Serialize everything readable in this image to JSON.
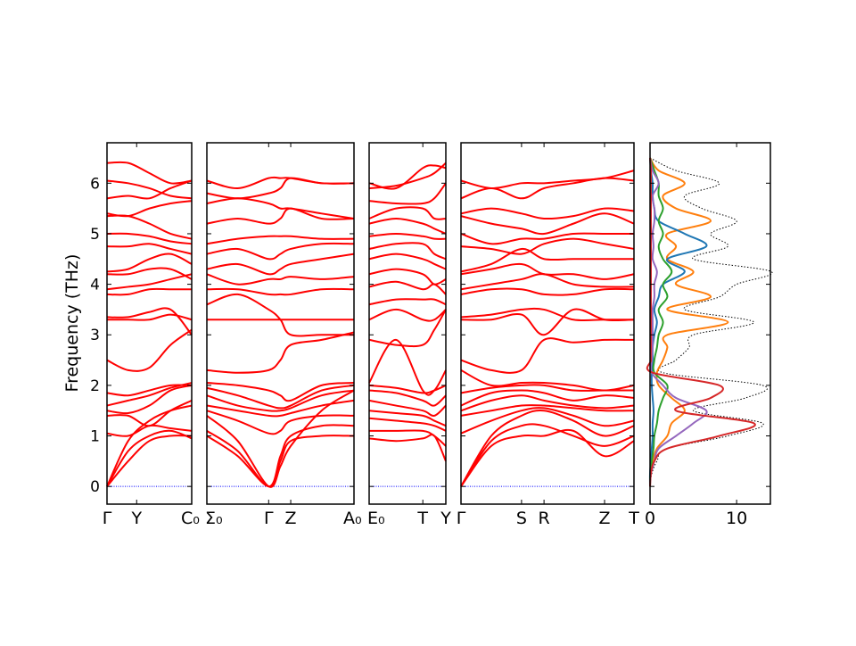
{
  "chart_data": {
    "type": "line",
    "title": "",
    "ylabel": "Frequency (THz)",
    "ylim": [
      -0.35,
      6.8
    ],
    "yticks": [
      "0",
      "1",
      "2",
      "3",
      "4",
      "5",
      "6"
    ],
    "band_color": "#ff0000",
    "zero_line_color": "#0000ff",
    "panels": [
      {
        "name": "Γ-Y-C0",
        "kpoints": [
          {
            "label": "Γ",
            "x": 0
          },
          {
            "label": "Y",
            "x": 0.35
          },
          {
            "label": "C₀",
            "x": 1
          }
        ],
        "x": [
          0,
          0.25,
          0.5,
          0.75,
          1
        ],
        "bands": [
          [
            0,
            0.5,
            0.9,
            1.0,
            1.0
          ],
          [
            0,
            0.7,
            1.0,
            1.1,
            0.95
          ],
          [
            0,
            0.9,
            1.3,
            1.5,
            1.6
          ],
          [
            1.05,
            1.0,
            1.2,
            1.15,
            1.1
          ],
          [
            1.4,
            1.4,
            1.2,
            1.5,
            1.7
          ],
          [
            1.5,
            1.45,
            1.6,
            1.9,
            2.0
          ],
          [
            1.6,
            1.7,
            1.8,
            1.95,
            2.05
          ],
          [
            1.85,
            1.8,
            1.9,
            2.0,
            2.0
          ],
          [
            2.5,
            2.3,
            2.35,
            2.8,
            3.1
          ],
          [
            3.3,
            3.3,
            3.3,
            3.4,
            3.3
          ],
          [
            3.35,
            3.35,
            3.45,
            3.5,
            3.0
          ],
          [
            3.8,
            3.8,
            3.9,
            3.9,
            3.9
          ],
          [
            3.9,
            3.95,
            4.0,
            4.1,
            4.2
          ],
          [
            4.2,
            4.2,
            4.3,
            4.3,
            4.1
          ],
          [
            4.25,
            4.3,
            4.5,
            4.6,
            4.4
          ],
          [
            4.75,
            4.75,
            4.8,
            4.7,
            4.6
          ],
          [
            5.0,
            5.0,
            4.95,
            4.85,
            4.8
          ],
          [
            5.35,
            5.35,
            5.2,
            5.0,
            4.9
          ],
          [
            5.4,
            5.35,
            5.5,
            5.6,
            5.65
          ],
          [
            5.7,
            5.75,
            5.7,
            5.9,
            6.05
          ],
          [
            6.05,
            6.0,
            5.9,
            5.75,
            5.7
          ],
          [
            6.4,
            6.4,
            6.2,
            6.0,
            6.05
          ]
        ]
      },
      {
        "name": "Σ0-Γ-Z-A0",
        "kpoints": [
          {
            "label": "Σ₀",
            "x": 0
          },
          {
            "label": "Γ",
            "x": 0.42
          },
          {
            "label": "Z",
            "x": 0.57
          },
          {
            "label": "A₀",
            "x": 1
          }
        ],
        "x": [
          0,
          0.21,
          0.42,
          0.5,
          0.57,
          0.78,
          1
        ],
        "bands": [
          [
            1.0,
            0.6,
            0,
            0.5,
            0.9,
            1.0,
            1.0
          ],
          [
            1.1,
            0.7,
            0,
            0.6,
            1.0,
            1.2,
            1.2
          ],
          [
            1.4,
            0.9,
            0,
            0.4,
            0.8,
            1.5,
            1.9
          ],
          [
            1.5,
            1.3,
            1.05,
            1.1,
            1.3,
            1.4,
            1.4
          ],
          [
            1.6,
            1.5,
            1.4,
            1.4,
            1.45,
            1.6,
            1.7
          ],
          [
            1.8,
            1.6,
            1.5,
            1.5,
            1.55,
            1.8,
            1.9
          ],
          [
            1.95,
            1.8,
            1.6,
            1.55,
            1.6,
            1.9,
            2.0
          ],
          [
            2.05,
            2.0,
            1.9,
            1.8,
            1.7,
            2.0,
            2.05
          ],
          [
            2.3,
            2.25,
            2.3,
            2.5,
            2.8,
            2.9,
            3.05
          ],
          [
            3.3,
            3.3,
            3.3,
            3.3,
            3.3,
            3.3,
            3.3
          ],
          [
            3.6,
            3.8,
            3.5,
            3.3,
            3.0,
            3.0,
            3.0
          ],
          [
            3.9,
            3.9,
            3.8,
            3.8,
            3.8,
            3.9,
            3.9
          ],
          [
            4.2,
            4.0,
            4.1,
            4.1,
            4.15,
            4.1,
            4.15
          ],
          [
            4.3,
            4.4,
            4.2,
            4.3,
            4.4,
            4.5,
            4.6
          ],
          [
            4.6,
            4.7,
            4.5,
            4.6,
            4.7,
            4.8,
            4.8
          ],
          [
            4.8,
            4.9,
            4.95,
            4.95,
            4.95,
            4.9,
            4.9
          ],
          [
            5.2,
            5.3,
            5.2,
            5.3,
            5.5,
            5.3,
            5.3
          ],
          [
            5.6,
            5.7,
            5.6,
            5.5,
            5.5,
            5.4,
            5.3
          ],
          [
            5.8,
            5.7,
            5.8,
            5.9,
            6.1,
            6.0,
            6.0
          ],
          [
            6.05,
            5.9,
            6.1,
            6.1,
            6.1,
            6.0,
            6.0
          ]
        ]
      },
      {
        "name": "E0-T-Y",
        "kpoints": [
          {
            "label": "E₀",
            "x": 0
          },
          {
            "label": "T",
            "x": 0.7
          },
          {
            "label": "Y",
            "x": 1
          }
        ],
        "x": [
          0,
          0.35,
          0.7,
          0.85,
          1
        ],
        "bands": [
          [
            0.95,
            0.9,
            0.95,
            1.0,
            0.5
          ],
          [
            1.1,
            1.1,
            1.1,
            1.0,
            0.8
          ],
          [
            1.35,
            1.3,
            1.25,
            1.2,
            1.1
          ],
          [
            1.5,
            1.45,
            1.4,
            1.3,
            1.2
          ],
          [
            1.7,
            1.6,
            1.5,
            1.4,
            1.6
          ],
          [
            1.9,
            1.85,
            1.7,
            1.6,
            1.8
          ],
          [
            2.0,
            1.95,
            1.85,
            1.9,
            2.0
          ],
          [
            2.05,
            2.9,
            1.9,
            1.9,
            2.3
          ],
          [
            2.9,
            2.8,
            2.8,
            3.1,
            3.5
          ],
          [
            3.3,
            3.5,
            3.3,
            3.3,
            3.5
          ],
          [
            3.6,
            3.7,
            3.7,
            3.7,
            3.6
          ],
          [
            3.95,
            4.05,
            3.9,
            4.0,
            3.8
          ],
          [
            4.2,
            4.3,
            4.2,
            4.0,
            4.1
          ],
          [
            4.5,
            4.6,
            4.5,
            4.4,
            4.3
          ],
          [
            4.7,
            4.8,
            4.8,
            4.6,
            4.5
          ],
          [
            4.95,
            5.0,
            4.95,
            4.9,
            4.9
          ],
          [
            5.2,
            5.3,
            5.2,
            5.1,
            5.0
          ],
          [
            5.3,
            5.5,
            5.5,
            5.3,
            5.3
          ],
          [
            5.65,
            5.6,
            5.6,
            5.7,
            6.0
          ],
          [
            5.9,
            5.95,
            6.1,
            6.2,
            6.4
          ],
          [
            6.0,
            5.9,
            6.3,
            6.35,
            6.3
          ]
        ]
      },
      {
        "name": "Γ-S-R-Z-T",
        "kpoints": [
          {
            "label": "Γ",
            "x": 0
          },
          {
            "label": "S",
            "x": 0.35
          },
          {
            "label": "R",
            "x": 0.48
          },
          {
            "label": "Z",
            "x": 0.83
          },
          {
            "label": "T",
            "x": 1
          }
        ],
        "x": [
          0,
          0.175,
          0.35,
          0.48,
          0.65,
          0.83,
          1
        ],
        "bands": [
          [
            0,
            0.8,
            1.0,
            1.0,
            1.1,
            0.6,
            0.9
          ],
          [
            0,
            0.9,
            1.2,
            1.2,
            1.0,
            0.8,
            1.0
          ],
          [
            0,
            1.0,
            1.4,
            1.5,
            1.3,
            1.0,
            1.2
          ],
          [
            1.05,
            1.3,
            1.5,
            1.55,
            1.4,
            1.2,
            1.3
          ],
          [
            1.4,
            1.5,
            1.6,
            1.6,
            1.55,
            1.5,
            1.5
          ],
          [
            1.5,
            1.7,
            1.8,
            1.7,
            1.6,
            1.55,
            1.6
          ],
          [
            1.6,
            1.85,
            1.9,
            1.85,
            1.7,
            1.8,
            1.75
          ],
          [
            1.85,
            1.95,
            2.0,
            2.0,
            1.9,
            1.9,
            1.9
          ],
          [
            2.3,
            2.0,
            2.05,
            2.05,
            2.0,
            1.9,
            2.0
          ],
          [
            2.5,
            2.3,
            2.3,
            2.9,
            2.85,
            2.9,
            2.9
          ],
          [
            3.3,
            3.3,
            3.4,
            3.0,
            3.5,
            3.3,
            3.3
          ],
          [
            3.35,
            3.4,
            3.5,
            3.5,
            3.3,
            3.3,
            3.3
          ],
          [
            3.8,
            3.9,
            3.9,
            3.8,
            3.8,
            3.9,
            3.9
          ],
          [
            3.9,
            4.0,
            4.1,
            4.2,
            4.0,
            3.95,
            3.95
          ],
          [
            4.2,
            4.3,
            4.4,
            4.2,
            4.2,
            4.1,
            4.2
          ],
          [
            4.25,
            4.4,
            4.7,
            4.5,
            4.5,
            4.5,
            4.5
          ],
          [
            4.75,
            4.7,
            4.6,
            4.8,
            4.9,
            4.8,
            4.7
          ],
          [
            5.0,
            4.8,
            4.9,
            4.9,
            5.0,
            5.0,
            5.0
          ],
          [
            5.35,
            5.2,
            5.1,
            5.0,
            5.2,
            5.4,
            5.2
          ],
          [
            5.4,
            5.5,
            5.4,
            5.3,
            5.35,
            5.5,
            5.45
          ],
          [
            5.7,
            5.9,
            5.7,
            5.9,
            6.0,
            6.1,
            6.05
          ],
          [
            6.05,
            5.9,
            6.0,
            6.0,
            6.05,
            6.1,
            6.25
          ]
        ]
      }
    ],
    "dos": {
      "xlim": [
        0,
        13.9
      ],
      "xticks": [
        "0",
        "10"
      ],
      "freq": [
        0,
        0.25,
        0.5,
        0.75,
        1,
        1.25,
        1.5,
        1.75,
        2,
        2.25,
        2.5,
        2.75,
        3,
        3.25,
        3.5,
        3.75,
        4,
        4.25,
        4.5,
        4.75,
        5,
        5.25,
        5.5,
        5.75,
        6,
        6.25,
        6.5
      ],
      "series": [
        {
          "name": "total",
          "color": "#000000",
          "dotted": true,
          "values": [
            0,
            0.2,
            0.8,
            2,
            9,
            13,
            5,
            11,
            13,
            1.5,
            3,
            4.5,
            5,
            12,
            4,
            8,
            10,
            14,
            5,
            9,
            7,
            10,
            6,
            4,
            8,
            3,
            0
          ]
        },
        {
          "name": "orange",
          "color": "#ff7f0e",
          "values": [
            0,
            0.05,
            0.3,
            0.8,
            2,
            2.5,
            4,
            2.5,
            1,
            0.8,
            1.5,
            2,
            2,
            9,
            2,
            7,
            3,
            5,
            2,
            3,
            2,
            7,
            3,
            1.5,
            4,
            1,
            0
          ]
        },
        {
          "name": "blue",
          "color": "#1f77b4",
          "values": [
            0,
            0,
            0.1,
            0.2,
            0.3,
            0.3,
            0.4,
            0.3,
            0.2,
            0.2,
            0.3,
            0.3,
            0.5,
            0.8,
            0.5,
            1,
            1.5,
            4,
            2,
            6.5,
            4,
            1,
            0.5,
            0.3,
            0.3,
            0.1,
            0
          ]
        },
        {
          "name": "green",
          "color": "#2ca02c",
          "values": [
            0,
            0.05,
            0.2,
            0.4,
            0.5,
            0.8,
            1,
            1.5,
            2,
            0.5,
            0.5,
            0.8,
            1,
            1.5,
            1,
            2,
            1.5,
            2.5,
            1.5,
            1,
            1.5,
            1,
            1.5,
            1,
            1,
            0.5,
            0
          ]
        },
        {
          "name": "purple",
          "color": "#9467bd",
          "values": [
            0,
            0.1,
            0.5,
            1,
            3,
            5,
            6.5,
            3,
            1.5,
            0.2,
            0.2,
            0.3,
            0.3,
            0.3,
            0.3,
            0.5,
            0.5,
            0.8,
            0.3,
            0.4,
            0.3,
            0.5,
            0.5,
            0.3,
            1,
            0.3,
            0
          ]
        },
        {
          "name": "red",
          "color": "#d62728",
          "values": [
            0,
            0.1,
            0.5,
            2,
            8,
            12,
            3,
            7,
            8,
            0.3,
            0.1,
            0.1,
            0.1,
            0.1,
            0.1,
            0.1,
            0.1,
            0.1,
            0.1,
            0.1,
            0.1,
            0.1,
            0.1,
            0.1,
            0.1,
            0.1,
            0
          ]
        }
      ]
    }
  }
}
